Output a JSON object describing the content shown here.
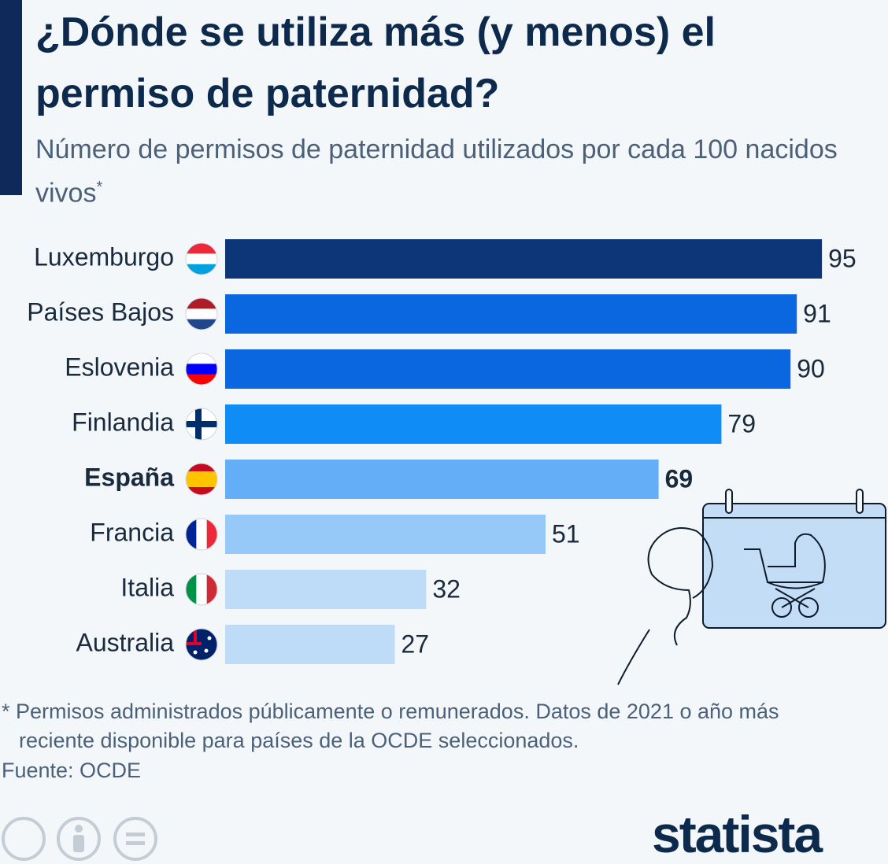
{
  "chart_data": {
    "type": "bar",
    "orientation": "horizontal",
    "title": "¿Dónde se utiliza más (y menos) el permiso de paternidad?",
    "subtitle": "Número de permisos de paternidad utilizados por cada 100 nacidos vivos",
    "subtitle_marker": "*",
    "categories": [
      "Luxemburgo",
      "Países Bajos",
      "Eslovenia",
      "Finlandia",
      "España",
      "Francia",
      "Italia",
      "Australia"
    ],
    "values": [
      95,
      91,
      90,
      79,
      69,
      51,
      32,
      27
    ],
    "colors": [
      "#0c3677",
      "#0a67e0",
      "#0a67e0",
      "#0f8cf5",
      "#64aef7",
      "#96c8f8",
      "#bedcf8",
      "#bedcf8"
    ],
    "highlight_index": 4,
    "xlim": [
      0,
      100
    ],
    "footnote": "* Permisos administrados públicamente o remunerados. Datos de 2021 o año más reciente disponible para países de la OCDE seleccionados.",
    "source": "Fuente: OCDE"
  },
  "brand": "statista"
}
